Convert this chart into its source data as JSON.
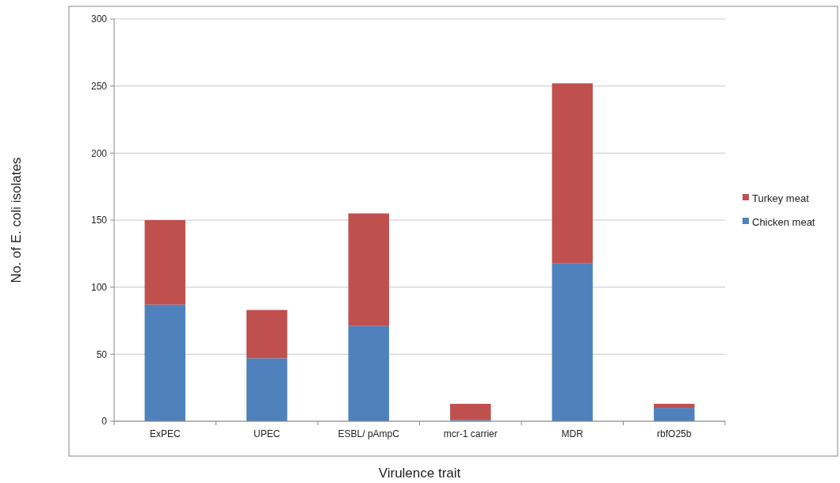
{
  "chart_data": {
    "type": "bar",
    "stacked": true,
    "categories": [
      "ExPEC",
      "UPEC",
      "ESBL/ pAmpC",
      "mcr-1 carrier",
      "MDR",
      "rbfO25b"
    ],
    "series": [
      {
        "name": "Chicken meat",
        "color": "#4f81bd",
        "values": [
          87,
          47,
          71,
          1,
          118,
          10
        ]
      },
      {
        "name": "Turkey meat",
        "color": "#c0504d",
        "values": [
          63,
          36,
          84,
          12,
          134,
          3
        ]
      }
    ],
    "xlabel": "Virulence trait",
    "ylabel": "No. of E. coli isolates",
    "ylim": [
      0,
      300
    ],
    "yticks": [
      0,
      50,
      100,
      150,
      200,
      250,
      300
    ],
    "grid": "y",
    "legend": "right"
  }
}
